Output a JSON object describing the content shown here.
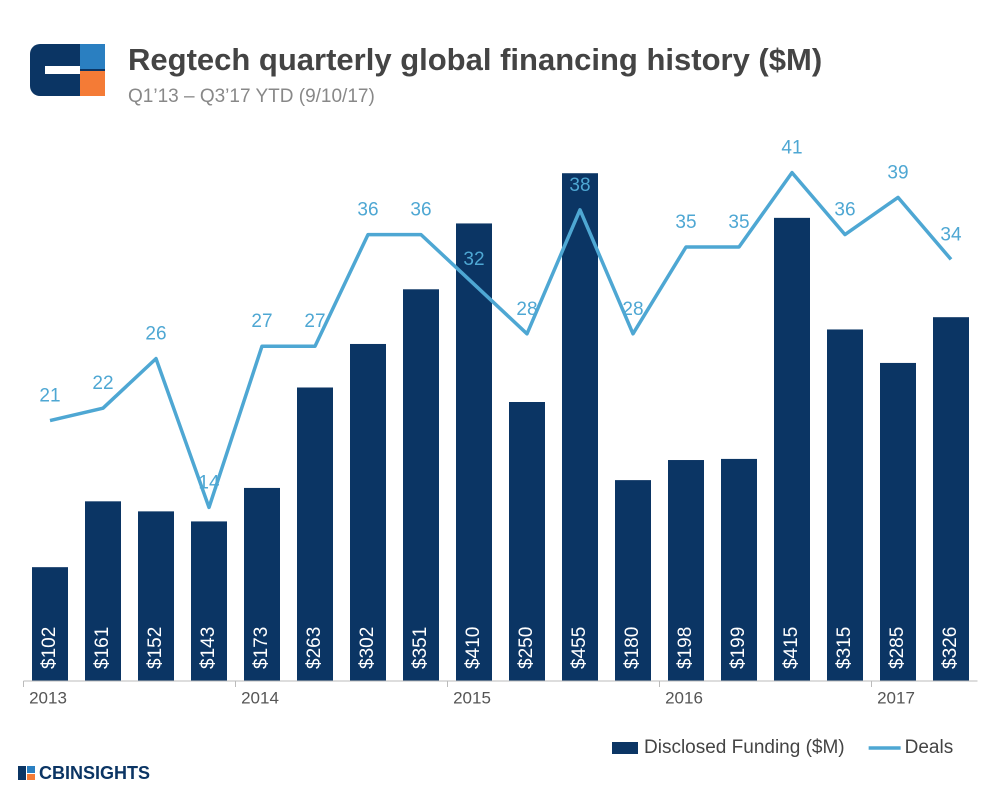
{
  "chart_data": {
    "type": "bar_line",
    "title": "Regtech quarterly global financing history ($M)",
    "subtitle": "Q1’13 – Q3’17 YTD (9/10/17)",
    "categories": [
      "2013",
      null,
      null,
      null,
      "2014",
      null,
      null,
      null,
      "2015",
      null,
      null,
      null,
      "2016",
      null,
      null,
      null,
      "2017",
      null
    ],
    "series": [
      {
        "name": "Disclosed Funding ($M)",
        "type": "bar",
        "color": "#0b3564",
        "values": [
          102,
          161,
          152,
          143,
          173,
          263,
          302,
          351,
          410,
          250,
          455,
          180,
          198,
          199,
          415,
          315,
          285,
          326
        ],
        "value_labels": [
          "$102",
          "$161",
          "$152",
          "$143",
          "$173",
          "$263",
          "$302",
          "$351",
          "$410",
          "$250",
          "$455",
          "$180",
          "$198",
          "$199",
          "$415",
          "$315",
          "$285",
          "$326"
        ]
      },
      {
        "name": "Deals",
        "type": "line",
        "axis": "y2",
        "color": "#4ea7d3",
        "values": [
          21,
          22,
          26,
          14,
          27,
          27,
          36,
          36,
          32,
          28,
          38,
          28,
          35,
          35,
          41,
          36,
          39,
          34
        ]
      }
    ],
    "ylim": [
      0,
      500
    ],
    "y2lim": [
      0,
      45
    ],
    "legend": "bottom-right"
  },
  "footer": {
    "brand": "CBINSIGHTS"
  }
}
